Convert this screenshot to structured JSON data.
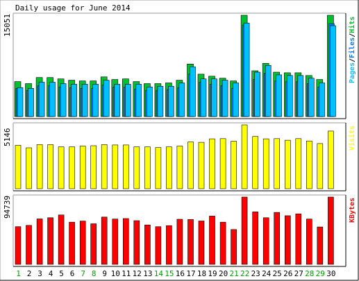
{
  "chart_data": {
    "type": "bar",
    "title": "Daily usage for June 2014",
    "categories": [
      "1",
      "2",
      "3",
      "4",
      "5",
      "6",
      "7",
      "8",
      "9",
      "10",
      "11",
      "12",
      "13",
      "14",
      "15",
      "16",
      "17",
      "18",
      "19",
      "20",
      "21",
      "22",
      "23",
      "24",
      "25",
      "26",
      "27",
      "28",
      "29",
      "30"
    ],
    "weekend_days": [
      "1",
      "7",
      "8",
      "14",
      "15",
      "21",
      "22",
      "28",
      "29"
    ],
    "panels": [
      {
        "name": "hits",
        "max_label": "15051",
        "ymax": 15051,
        "series": [
          {
            "name": "Hits",
            "color": "#00c030",
            "values": [
              5200,
              4900,
              5800,
              5800,
              5600,
              5400,
              5300,
              5300,
              5900,
              5500,
              5600,
              5200,
              4900,
              4900,
              5000,
              5400,
              7800,
              6300,
              6000,
              5700,
              5300,
              15051,
              6800,
              7900,
              6600,
              6500,
              6500,
              6100,
              5500,
              15051
            ]
          },
          {
            "name": "Files",
            "color": "#0080ff",
            "values": [
              4200,
              3900,
              4600,
              4600,
              4400,
              4300,
              4200,
              4200,
              4700,
              4400,
              4400,
              4100,
              3900,
              3900,
              4000,
              4300,
              6300,
              5100,
              4800,
              4600,
              4200,
              13600,
              5500,
              6400,
              5300,
              5200,
              5200,
              4900,
              4400,
              13800
            ]
          },
          {
            "name": "Pages",
            "color": "#00c0ff",
            "values": [
              4300,
              4200,
              5100,
              5100,
              4900,
              4800,
              4800,
              4800,
              5400,
              4800,
              4800,
              4800,
              4400,
              4500,
              4500,
              5000,
              7400,
              5600,
              5600,
              5400,
              5000,
              13900,
              6600,
              7600,
              6200,
              6100,
              6100,
              5700,
              5000,
              13500
            ]
          }
        ],
        "axis_label": [
          {
            "text": "Pages",
            "color": "#00c0ff"
          },
          {
            "text": "/",
            "color": "#000000"
          },
          {
            "text": "Files",
            "color": "#0080ff"
          },
          {
            "text": "/",
            "color": "#000000"
          },
          {
            "text": "Hits",
            "color": "#00c030"
          }
        ]
      },
      {
        "name": "visits",
        "max_label": "5146",
        "ymax": 5146,
        "series": [
          {
            "name": "Visits",
            "color": "#ffff00",
            "values": [
              3500,
              3300,
              3560,
              3560,
              3380,
              3380,
              3440,
              3470,
              3560,
              3530,
              3530,
              3380,
              3380,
              3320,
              3380,
              3440,
              3770,
              3740,
              4020,
              4040,
              3830,
              5146,
              4210,
              4020,
              4040,
              3910,
              4040,
              3850,
              3640,
              4650
            ]
          }
        ],
        "axis_label": [
          {
            "text": "Visits",
            "color": "#ffff00"
          }
        ]
      },
      {
        "name": "kbytes",
        "max_label": "94739",
        "ymax": 94739,
        "series": [
          {
            "name": "KBytes",
            "color": "#ff0000",
            "values": [
              53000,
              54900,
              64000,
              65600,
              69500,
              59400,
              60900,
              57100,
              66600,
              63800,
              64500,
              61500,
              55500,
              53000,
              54500,
              63500,
              63100,
              61000,
              68000,
              59400,
              49000,
              94739,
              73900,
              65600,
              73200,
              68500,
              71100,
              63800,
              52600,
              94739
            ]
          }
        ],
        "axis_label": [
          {
            "text": "KBytes",
            "color": "#ff0000"
          }
        ]
      }
    ]
  }
}
